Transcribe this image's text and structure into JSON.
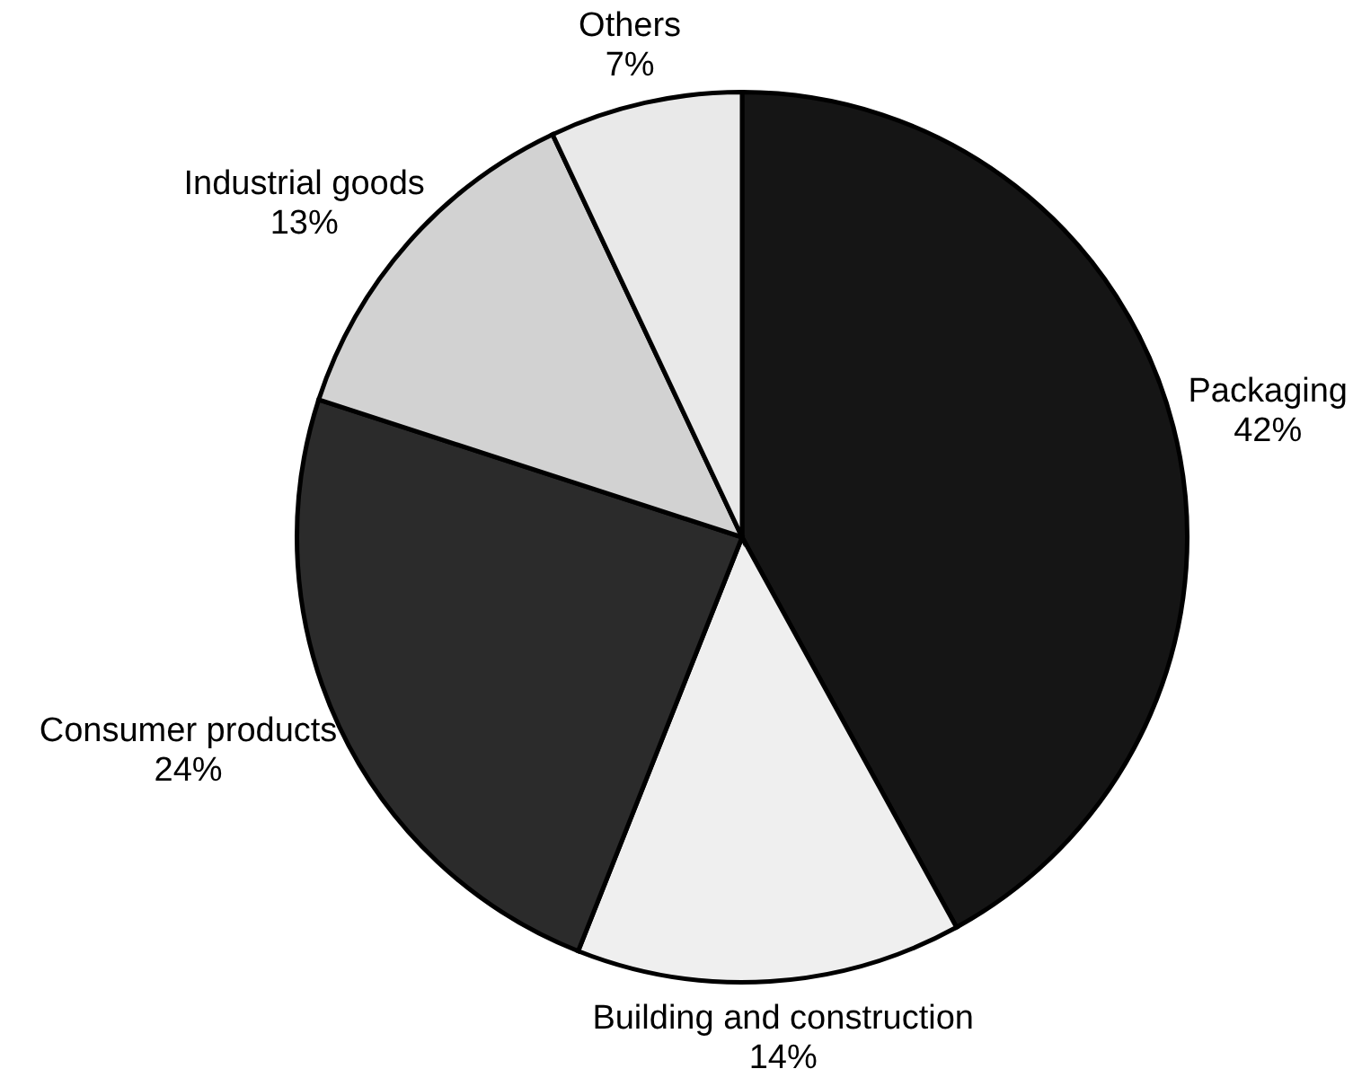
{
  "chart_data": {
    "type": "pie",
    "categories": [
      "Packaging",
      "Building and construction",
      "Consumer products",
      "Industrial goods",
      "Others"
    ],
    "values": [
      42,
      14,
      24,
      13,
      7
    ],
    "value_labels": [
      "42%",
      "14%",
      "24%",
      "13%",
      "7%"
    ],
    "colors": [
      "#151515",
      "#efefef",
      "#2b2b2b",
      "#d2d2d2",
      "#e9e9e9"
    ]
  }
}
